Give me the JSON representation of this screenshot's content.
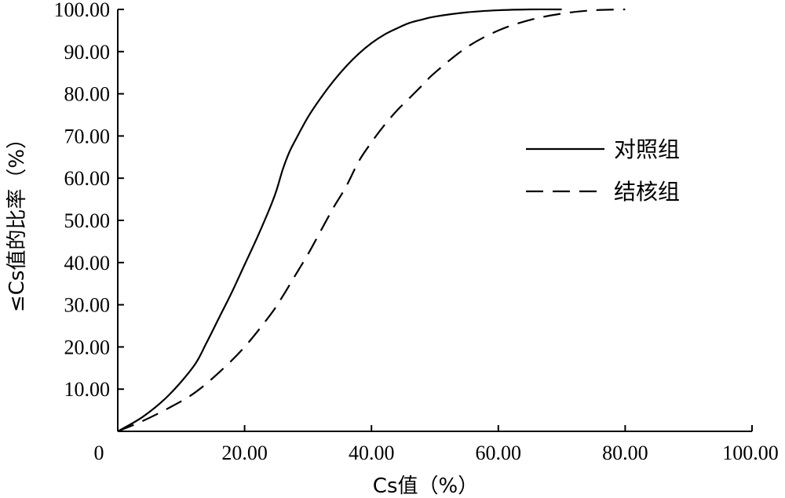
{
  "chart_data": {
    "type": "line",
    "title": "",
    "xlabel": "Cs值（%）",
    "ylabel": "≤Cs值的比率（%）",
    "xlim": [
      0,
      100
    ],
    "ylim": [
      0,
      100
    ],
    "x_ticks": [
      "0",
      "20.00",
      "40.00",
      "60.00",
      "80.00",
      "100.00"
    ],
    "y_ticks": [
      "10.00",
      "20.00",
      "30.00",
      "40.00",
      "50.00",
      "60.00",
      "70.00",
      "80.00",
      "90.00",
      "100.00"
    ],
    "grid": false,
    "legend_position": "right",
    "series": [
      {
        "name": "对照组",
        "line_style": "solid",
        "color": "#000000",
        "x": [
          0,
          4,
          8,
          12,
          14,
          16,
          18,
          20,
          22,
          24,
          25,
          26,
          27,
          28,
          30,
          32,
          34,
          36,
          38,
          40,
          42,
          44,
          46,
          48,
          50,
          55,
          60,
          65,
          70
        ],
        "y": [
          0,
          3.5,
          8.5,
          15.5,
          21,
          27,
          33,
          39.5,
          46,
          53,
          57,
          62,
          66,
          69,
          74.5,
          79,
          83,
          86.5,
          89.5,
          92,
          94,
          95.5,
          96.8,
          97.6,
          98.3,
          99.3,
          99.8,
          100,
          100
        ]
      },
      {
        "name": "结核组",
        "line_style": "dashed",
        "color": "#000000",
        "x": [
          0,
          4,
          8,
          12,
          16,
          20,
          24,
          26,
          28,
          30,
          32,
          34,
          36,
          38,
          40,
          42,
          44,
          46,
          48,
          50,
          55,
          60,
          65,
          70,
          75,
          80
        ],
        "y": [
          0,
          2.5,
          5.5,
          9,
          14,
          20,
          27.5,
          32,
          37,
          42,
          47.5,
          53,
          58,
          64,
          68.5,
          72.5,
          76,
          79,
          82,
          85,
          91,
          95,
          97.5,
          99,
          99.8,
          100
        ]
      }
    ]
  }
}
